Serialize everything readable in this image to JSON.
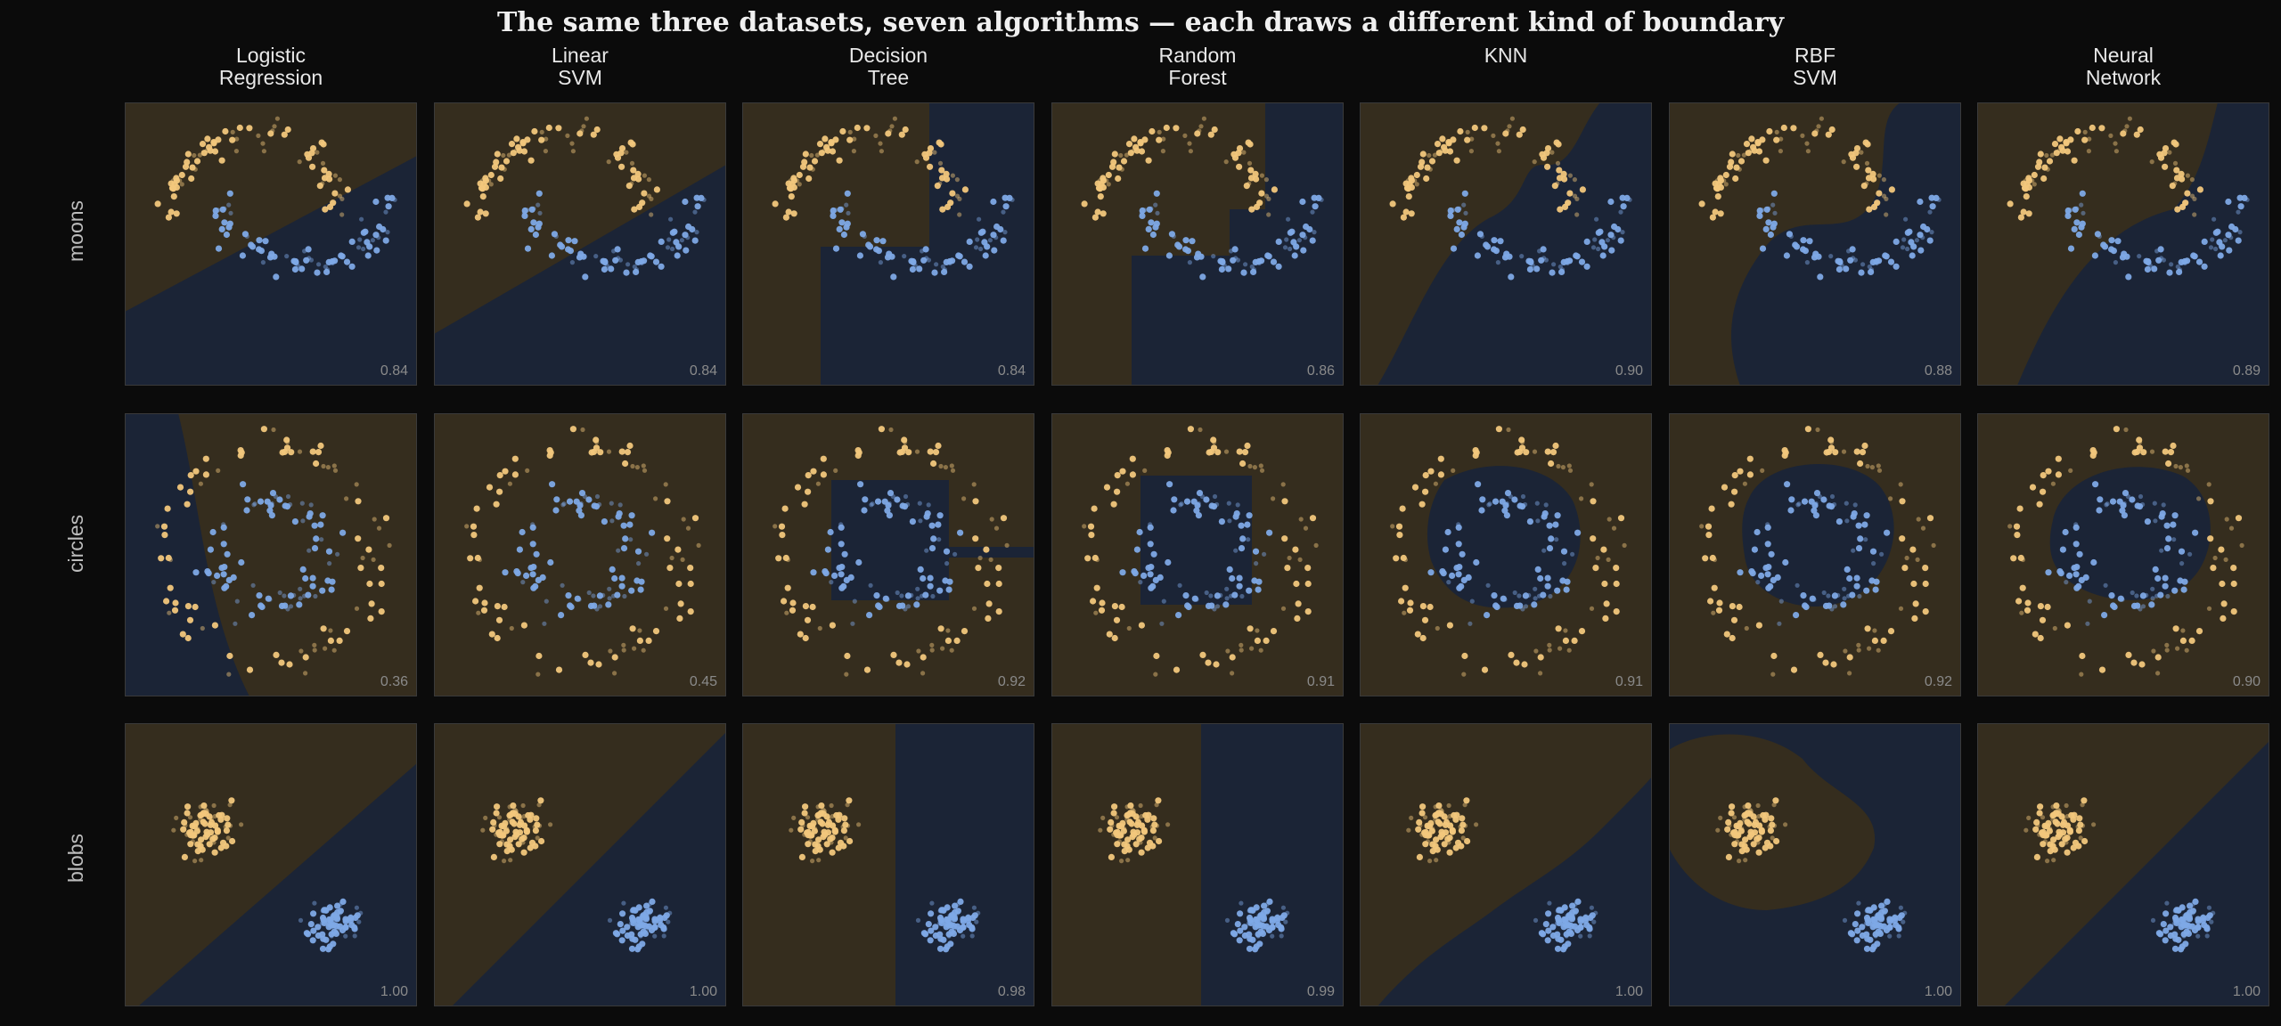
{
  "title": "The same three datasets, seven algorithms — each draws a different kind of boundary",
  "colors": {
    "background": "#0b0b0b",
    "class0": "#f2c77c",
    "class1": "#7ea9e6",
    "region0": "#352d1e",
    "region1": "#1b2436",
    "score": "#8a8a8a"
  },
  "columns": [
    {
      "line1": "Logistic",
      "line2": "Regression"
    },
    {
      "line1": "Linear",
      "line2": "SVM"
    },
    {
      "line1": "Decision",
      "line2": "Tree"
    },
    {
      "line1": "Random",
      "line2": "Forest"
    },
    {
      "line1": "KNN",
      "line2": ""
    },
    {
      "line1": "RBF",
      "line2": "SVM"
    },
    {
      "line1": "Neural",
      "line2": "Network"
    }
  ],
  "rows": [
    "moons",
    "circles",
    "blobs"
  ],
  "chart_data": {
    "type": "scatter",
    "grid": false,
    "datasets": [
      "moons",
      "circles",
      "blobs"
    ],
    "classifiers": [
      "Logistic Regression",
      "Linear SVM",
      "Decision Tree",
      "Random Forest",
      "KNN",
      "RBF SVM",
      "Neural Network"
    ],
    "scores": [
      [
        "0.84",
        "0.84",
        "0.84",
        "0.86",
        "0.90",
        "0.88",
        "0.89"
      ],
      [
        "0.36",
        "0.45",
        "0.92",
        "0.91",
        "0.91",
        "0.92",
        "0.90"
      ],
      [
        "1.00",
        "1.00",
        "0.98",
        "0.99",
        "1.00",
        "1.00",
        "1.00"
      ]
    ]
  }
}
